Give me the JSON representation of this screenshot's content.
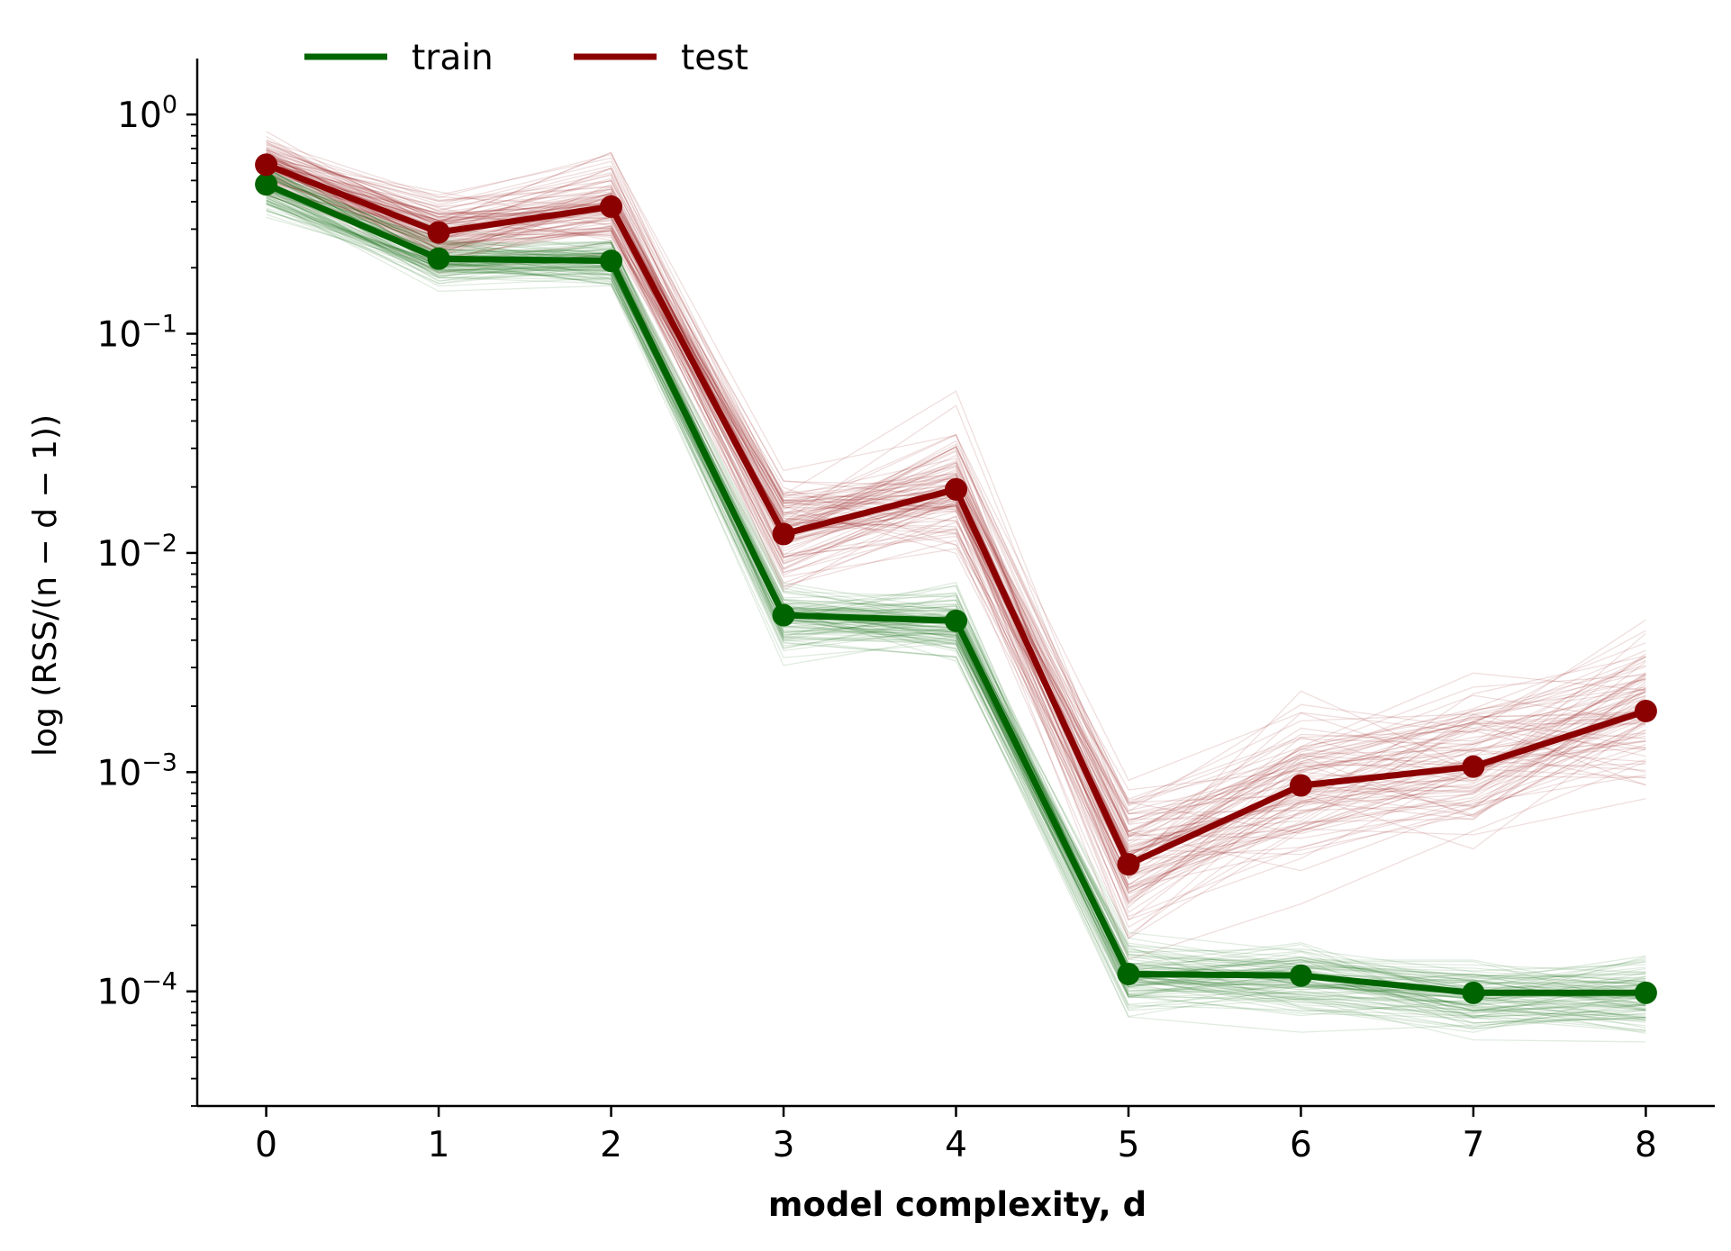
{
  "chart_data": {
    "type": "line",
    "title": "",
    "xlabel": "model complexity, d",
    "ylabel": "log (RSS/(n − d − 1))",
    "yscale": "log",
    "x": [
      0,
      1,
      2,
      3,
      4,
      5,
      6,
      7,
      8
    ],
    "xticks": [
      "0",
      "1",
      "2",
      "3",
      "4",
      "5",
      "6",
      "7",
      "8"
    ],
    "xlim": [
      -0.4,
      8.4
    ],
    "ylim": [
      3e-05,
      1.8
    ],
    "yticks": [
      {
        "value": 1,
        "base": "10",
        "exp": "0"
      },
      {
        "value": 0.1,
        "base": "10",
        "exp": "−1"
      },
      {
        "value": 0.01,
        "base": "10",
        "exp": "−2"
      },
      {
        "value": 0.001,
        "base": "10",
        "exp": "−3"
      },
      {
        "value": 0.0001,
        "base": "10",
        "exp": "−4"
      }
    ],
    "legend_position": "top-left",
    "series": [
      {
        "name": "train",
        "color": "#006400",
        "values": [
          0.48,
          0.22,
          0.215,
          0.0052,
          0.0049,
          0.00012,
          0.000118,
          9.85e-05,
          9.85e-05
        ]
      },
      {
        "name": "test",
        "color": "#8b0000",
        "values": [
          0.59,
          0.29,
          0.38,
          0.0122,
          0.0195,
          0.00038,
          0.00087,
          0.00106,
          0.0019
        ]
      }
    ],
    "bootstrap_traces": {
      "count_per_series": 100,
      "train_color": "#006400",
      "test_color": "#8b0000"
    }
  }
}
